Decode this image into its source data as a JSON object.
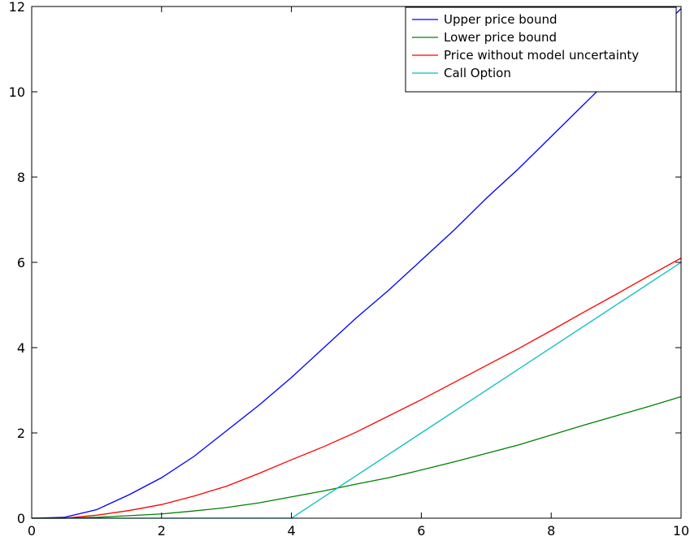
{
  "chart_data": {
    "type": "line",
    "title": "",
    "xlabel": "",
    "ylabel": "",
    "xlim": [
      0,
      10
    ],
    "ylim": [
      0,
      12
    ],
    "xticks": [
      0,
      2,
      4,
      6,
      8,
      10
    ],
    "yticks": [
      0,
      2,
      4,
      6,
      8,
      10,
      12
    ],
    "x_tick_labels": [
      "0",
      "2",
      "4",
      "6",
      "8",
      "10"
    ],
    "y_tick_labels": [
      "0",
      "2",
      "4",
      "6",
      "8",
      "10",
      "12"
    ],
    "grid": false,
    "legend_position": "top-right",
    "series": [
      {
        "name": "Upper price bound",
        "color": "#0000ff",
        "x": [
          0,
          0.5,
          1,
          1.5,
          2,
          2.5,
          3,
          3.5,
          4,
          4.5,
          5,
          5.5,
          6,
          6.5,
          7,
          7.5,
          8,
          8.5,
          9,
          9.5,
          10
        ],
        "y": [
          0.0,
          0.02,
          0.2,
          0.55,
          0.95,
          1.45,
          2.05,
          2.65,
          3.3,
          4.0,
          4.7,
          5.35,
          6.05,
          6.75,
          7.5,
          8.2,
          8.95,
          9.7,
          10.45,
          11.2,
          11.95
        ]
      },
      {
        "name": "Lower price bound",
        "color": "#008000",
        "x": [
          0,
          0.5,
          1,
          1.5,
          2,
          2.5,
          3,
          3.5,
          4,
          4.5,
          5,
          5.5,
          6,
          6.5,
          7,
          7.5,
          8,
          8.5,
          9,
          9.5,
          10
        ],
        "y": [
          0.0,
          0.0,
          0.02,
          0.06,
          0.1,
          0.17,
          0.25,
          0.36,
          0.5,
          0.64,
          0.8,
          0.95,
          1.13,
          1.32,
          1.52,
          1.72,
          1.95,
          2.18,
          2.4,
          2.62,
          2.85
        ]
      },
      {
        "name": "Price without model uncertainty",
        "color": "#ff0000",
        "x": [
          0,
          0.5,
          1,
          1.5,
          2,
          2.5,
          3,
          3.5,
          4,
          4.5,
          5,
          5.5,
          6,
          6.5,
          7,
          7.5,
          8,
          8.5,
          9,
          9.5,
          10
        ],
        "y": [
          0.0,
          0.0,
          0.07,
          0.18,
          0.32,
          0.52,
          0.75,
          1.05,
          1.37,
          1.68,
          2.02,
          2.4,
          2.78,
          3.18,
          3.58,
          3.98,
          4.4,
          4.83,
          5.25,
          5.68,
          6.1
        ]
      },
      {
        "name": "Call Option",
        "color": "#00bfbf",
        "x": [
          0,
          4,
          10
        ],
        "y": [
          0,
          0,
          6
        ]
      }
    ]
  }
}
